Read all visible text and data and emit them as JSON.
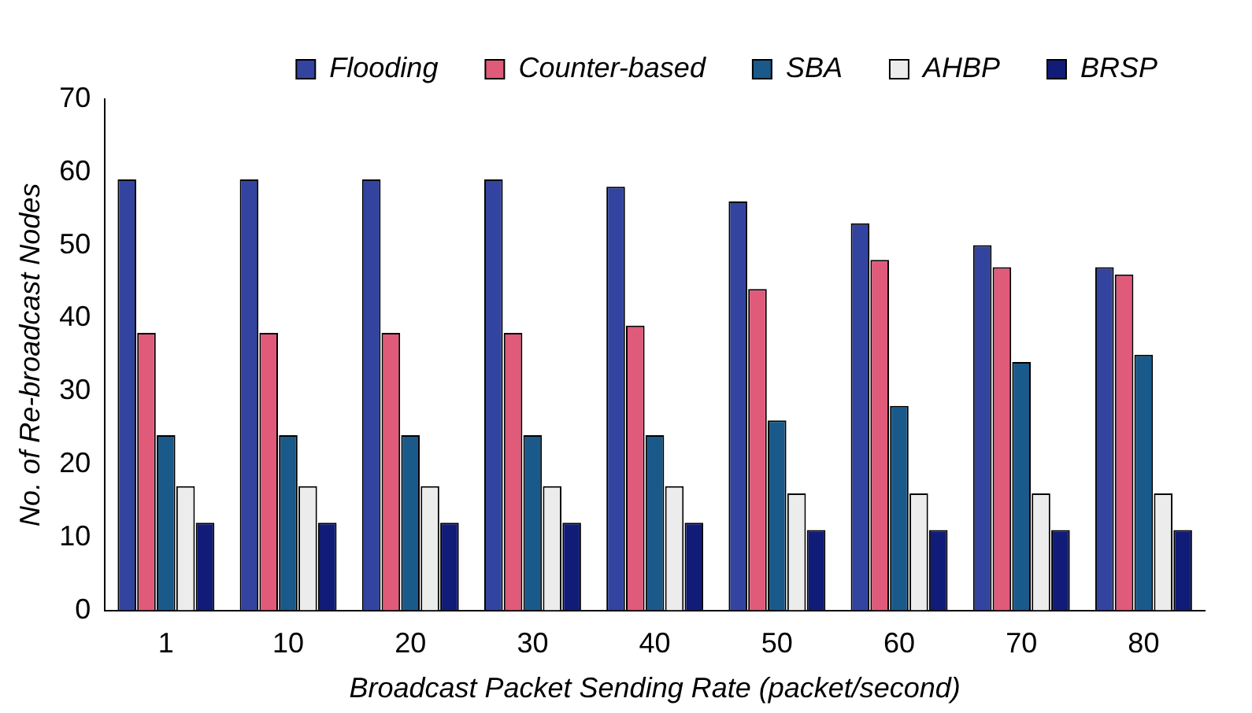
{
  "chart_data": {
    "type": "bar",
    "xlabel": "Broadcast Packet Sending Rate (packet/second)",
    "ylabel": "No. of Re-broadcast Nodes",
    "categories": [
      "1",
      "10",
      "20",
      "30",
      "40",
      "50",
      "60",
      "70",
      "80"
    ],
    "series": [
      {
        "name": "Flooding",
        "color": "#3344a0",
        "values": [
          59,
          59,
          59,
          59,
          58,
          56,
          53,
          50,
          47
        ]
      },
      {
        "name": "Counter-based",
        "color": "#e05a7a",
        "values": [
          38,
          38,
          38,
          38,
          39,
          44,
          48,
          47,
          46
        ]
      },
      {
        "name": "SBA",
        "color": "#1a5a8a",
        "values": [
          24,
          24,
          24,
          24,
          24,
          26,
          28,
          34,
          35
        ]
      },
      {
        "name": "AHBP",
        "color": "#ececec",
        "values": [
          17,
          17,
          17,
          17,
          17,
          16,
          16,
          16,
          16
        ]
      },
      {
        "name": "BRSP",
        "color": "#101c78",
        "values": [
          12,
          12,
          12,
          12,
          12,
          11,
          11,
          11,
          11
        ]
      }
    ],
    "ylim": [
      0,
      70
    ],
    "yticks": [
      0,
      10,
      20,
      30,
      40,
      50,
      60,
      70
    ],
    "grid": false,
    "legend": "top"
  }
}
